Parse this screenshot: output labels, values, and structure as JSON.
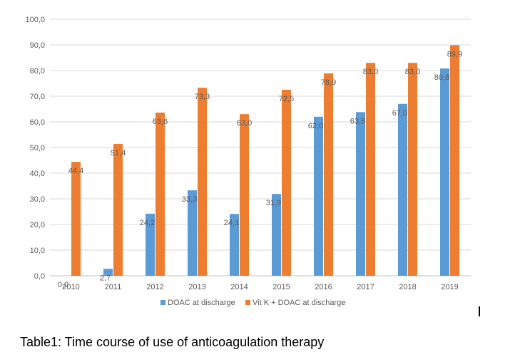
{
  "caption": "Table1: Time course of use of anticoagulation therapy",
  "chart_data": {
    "type": "bar",
    "categories": [
      "2010",
      "2011",
      "2012",
      "2013",
      "2014",
      "2015",
      "2016",
      "2017",
      "2018",
      "2019"
    ],
    "series": [
      {
        "name": "DOAC at discharge",
        "color": "#5b9bd5",
        "values": [
          0.0,
          2.7,
          24.2,
          33.3,
          24.1,
          31.9,
          62.0,
          63.8,
          67.0,
          80.8
        ],
        "labels": [
          "0,0",
          "2,7",
          "24,2",
          "33,3",
          "24,1",
          "31,9",
          "62,0",
          "63,8",
          "67,0",
          "80,8"
        ]
      },
      {
        "name": "Vit K + DOAC at discharge",
        "color": "#ed7d31",
        "values": [
          44.4,
          51.4,
          63.6,
          73.3,
          63.0,
          72.5,
          78.9,
          83.0,
          83.0,
          89.9
        ],
        "labels": [
          "44,4",
          "51,4",
          "63,6",
          "73,3",
          "63,0",
          "72,5",
          "78,9",
          "83,0",
          "83,0",
          "89,9"
        ]
      }
    ],
    "ylim": [
      0,
      100
    ],
    "yticks": [
      "0,0",
      "10,0",
      "20,0",
      "30,0",
      "40,0",
      "50,0",
      "60,0",
      "70,0",
      "80,0",
      "90,0",
      "100,0"
    ],
    "grid": true,
    "legend": "bottom"
  }
}
